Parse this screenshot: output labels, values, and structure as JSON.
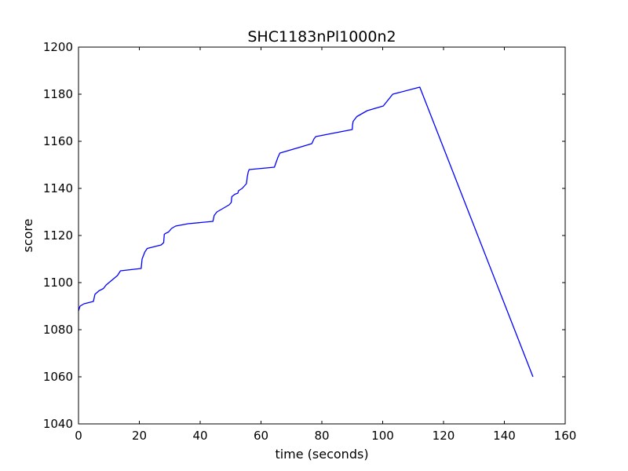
{
  "chart_data": {
    "type": "line",
    "title": "SHC1183nPl1000n2",
    "xlabel": "time (seconds)",
    "ylabel": "score",
    "xlim": [
      0,
      160
    ],
    "ylim": [
      1040,
      1200
    ],
    "xticks": [
      0,
      20,
      40,
      60,
      80,
      100,
      120,
      140,
      160
    ],
    "yticks": [
      1040,
      1060,
      1080,
      1100,
      1120,
      1140,
      1160,
      1180,
      1200
    ],
    "grid": false,
    "legend": "none",
    "series": [
      {
        "color": "#0000ff",
        "x": [
          0,
          0.5,
          1.8,
          4.9,
          5.4,
          6.7,
          8.2,
          9.1,
          12.8,
          13.8,
          20.6,
          20.9,
          21.8,
          22.6,
          27.2,
          28.0,
          28.2,
          28.5,
          29.6,
          30.6,
          31.9,
          36.0,
          44.2,
          44.6,
          45.5,
          49.5,
          50.2,
          50.4,
          51.4,
          52.4,
          52.6,
          53.8,
          55.2,
          55.5,
          55.8,
          56.1,
          64.4,
          65.5,
          66.2,
          71.5,
          76.7,
          77.4,
          78.0,
          90.0,
          90.1,
          90.3,
          91.5,
          94.9,
          100.2,
          103.3,
          112.2,
          149.4
        ],
        "y": [
          1088,
          1090,
          1091,
          1092,
          1095,
          1096.5,
          1097.5,
          1099,
          1103,
          1105,
          1106,
          1110,
          1113,
          1114.5,
          1116,
          1117,
          1120.5,
          1120.8,
          1121.5,
          1123,
          1124,
          1125,
          1126,
          1128.5,
          1130,
          1133,
          1134,
          1136.5,
          1137.5,
          1138,
          1139,
          1140,
          1142,
          1145,
          1147,
          1148,
          1149,
          1153,
          1155,
          1157,
          1159,
          1161,
          1162,
          1165,
          1167,
          1168.5,
          1170.5,
          1173,
          1175,
          1180,
          1183,
          1060
        ]
      }
    ]
  }
}
